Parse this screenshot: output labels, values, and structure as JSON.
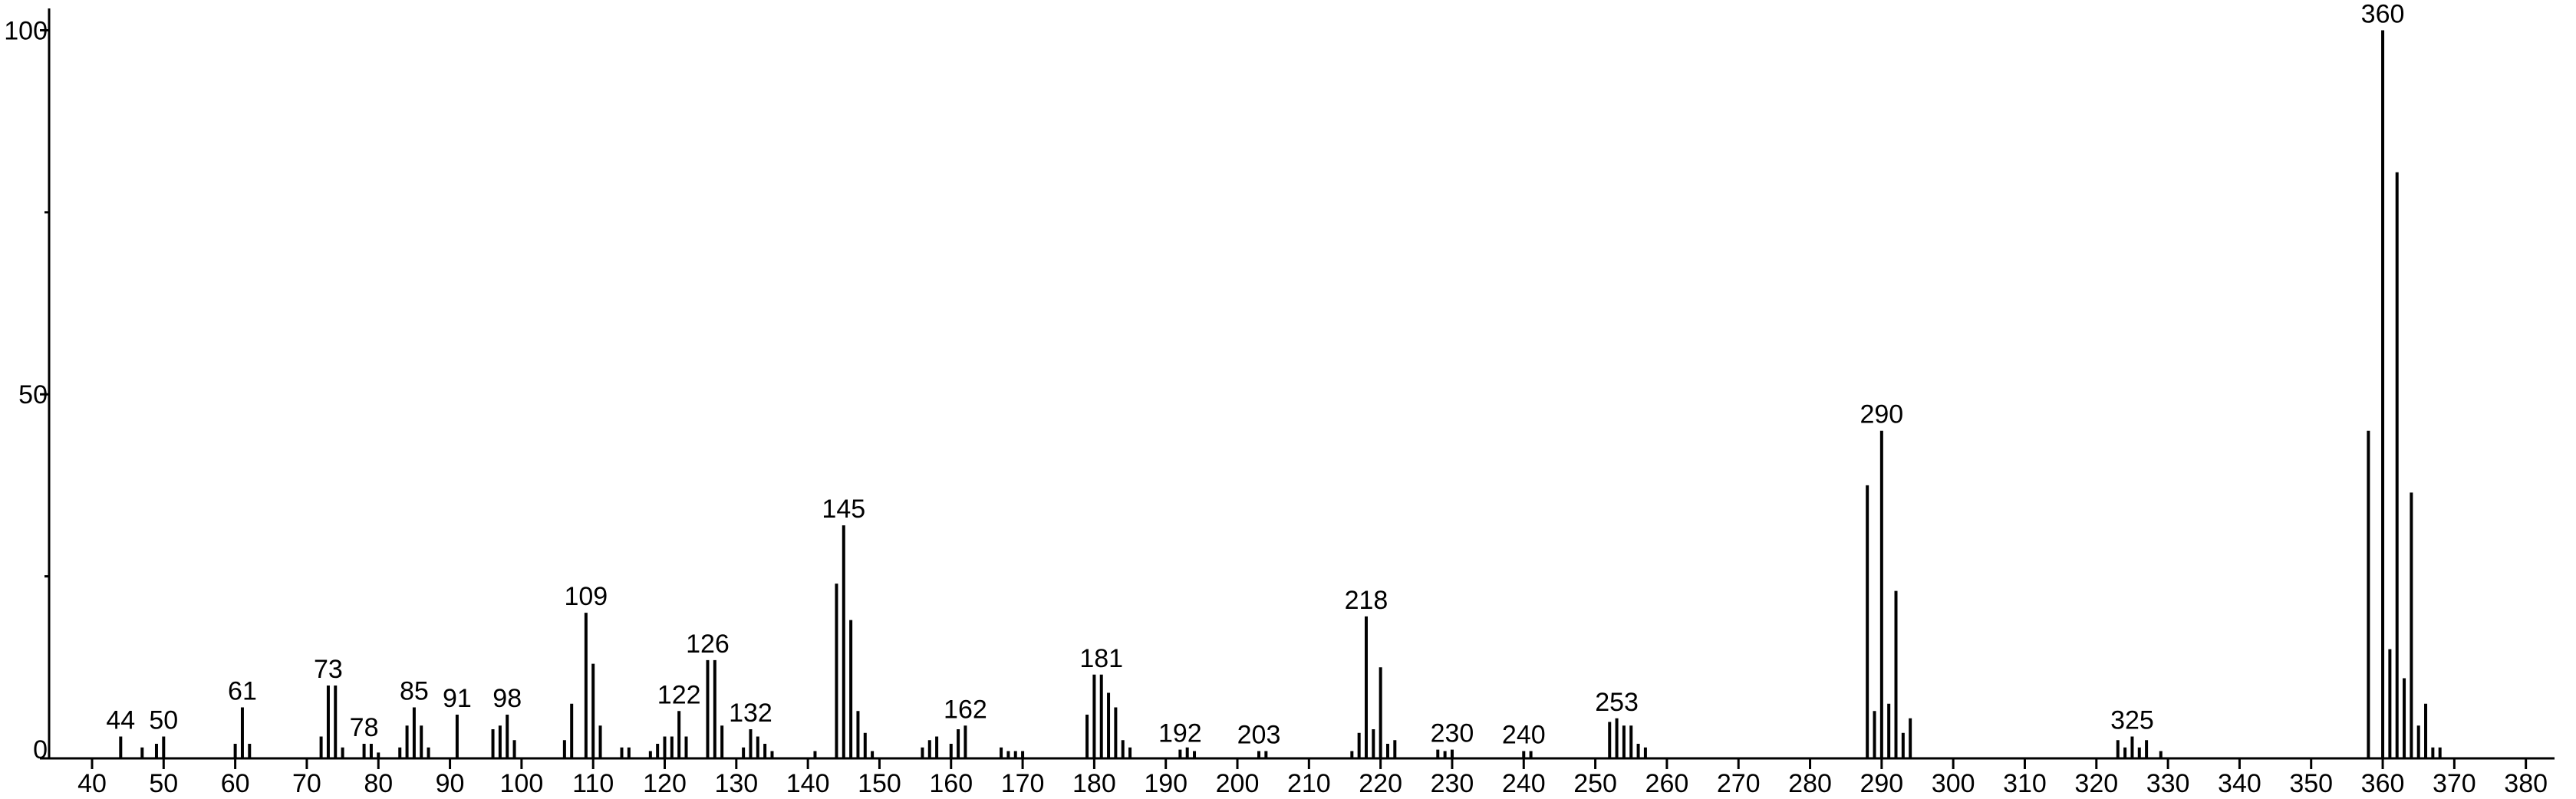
{
  "chart_data": {
    "type": "stem",
    "x": [
      44,
      47,
      49,
      50,
      60,
      61,
      62,
      72,
      73,
      74,
      75,
      78,
      79,
      80,
      83,
      84,
      85,
      86,
      87,
      91,
      96,
      97,
      98,
      99,
      106,
      107,
      109,
      110,
      111,
      114,
      115,
      118,
      119,
      120,
      121,
      122,
      123,
      126,
      127,
      128,
      131,
      132,
      133,
      134,
      135,
      141,
      144,
      145,
      146,
      147,
      148,
      149,
      156,
      157,
      158,
      160,
      161,
      162,
      167,
      168,
      169,
      170,
      179,
      180,
      181,
      182,
      183,
      184,
      185,
      192,
      193,
      194,
      203,
      204,
      216,
      217,
      218,
      219,
      220,
      221,
      222,
      228,
      229,
      230,
      240,
      241,
      252,
      253,
      254,
      255,
      256,
      257,
      288,
      289,
      290,
      291,
      292,
      293,
      294,
      323,
      324,
      325,
      326,
      327,
      329,
      358,
      360,
      361,
      362,
      363,
      364,
      365,
      366,
      367,
      368
    ],
    "values": [
      3,
      1.5,
      2,
      3,
      2,
      7,
      2,
      3,
      10,
      10,
      1.5,
      2,
      2,
      0.8,
      1.5,
      4.5,
      7,
      4.5,
      1.5,
      6,
      4,
      4.5,
      6,
      2.5,
      2.5,
      7.5,
      20,
      13,
      4.5,
      1.5,
      1.5,
      1,
      2,
      3,
      3,
      6.5,
      3,
      13.5,
      13.5,
      4.5,
      1.5,
      4,
      3,
      2,
      1,
      1,
      24,
      32,
      19,
      6.5,
      3.5,
      1,
      1.5,
      2.5,
      3,
      2,
      4,
      4.5,
      1.5,
      1,
      1,
      1,
      6,
      11.5,
      11.5,
      9,
      7,
      2.5,
      1.5,
      1.2,
      1.5,
      1,
      1,
      1,
      1,
      3.5,
      19.5,
      4,
      12.5,
      2,
      2.5,
      1.2,
      1,
      1.2,
      1,
      1,
      5,
      5.5,
      4.5,
      4.5,
      2,
      1.5,
      37.5,
      6.5,
      45,
      7.5,
      23,
      3.5,
      5.5,
      2.5,
      1.5,
      3,
      1.5,
      2.5,
      1,
      45,
      100,
      15,
      80.5,
      11,
      36.5,
      4.5,
      7.5,
      1.5,
      1.5
    ],
    "color": "#000000",
    "peak_labels": [
      44,
      50,
      61,
      73,
      78,
      85,
      91,
      98,
      109,
      122,
      126,
      132,
      145,
      162,
      181,
      192,
      203,
      218,
      230,
      240,
      253,
      290,
      325,
      360
    ],
    "xlim": [
      34,
      384
    ],
    "ylim": [
      0,
      103
    ],
    "xticks": [
      40,
      50,
      60,
      70,
      80,
      90,
      100,
      110,
      120,
      130,
      140,
      150,
      160,
      170,
      180,
      190,
      200,
      210,
      220,
      230,
      240,
      250,
      260,
      270,
      280,
      290,
      300,
      310,
      320,
      330,
      340,
      350,
      360,
      370,
      380
    ],
    "yticks": [
      0,
      50,
      100
    ],
    "yminorticks": [
      25,
      75
    ]
  }
}
